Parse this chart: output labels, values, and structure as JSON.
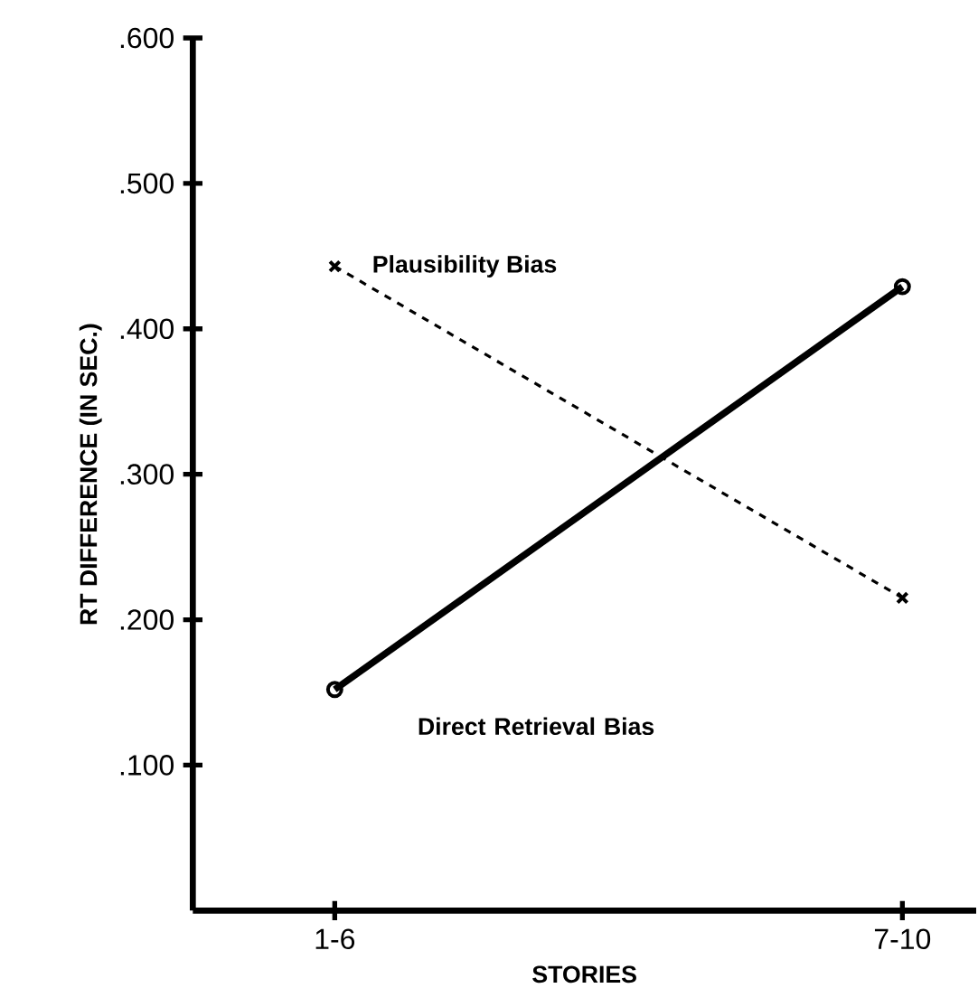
{
  "chart_data": {
    "type": "line",
    "xlabel": "STORIES",
    "ylabel": "RT DIFFERENCE (IN SEC.)",
    "categories": [
      "1-6",
      "7-10"
    ],
    "series": [
      {
        "name": "Direct Retrieval Bias",
        "color": "#000000",
        "values": [
          0.152,
          0.429
        ],
        "marker": "circle",
        "line_style": "solid"
      },
      {
        "name": "Plausibility Bias",
        "color": "#000000",
        "values": [
          0.443,
          0.215
        ],
        "marker": "cross",
        "line_style": "dashed"
      }
    ],
    "ylim": [
      0,
      0.6
    ],
    "yticks": [
      {
        "value": 0.1,
        "label": ".100"
      },
      {
        "value": 0.2,
        "label": ".200"
      },
      {
        "value": 0.3,
        "label": ".300"
      },
      {
        "value": 0.4,
        "label": ".400"
      },
      {
        "value": 0.5,
        "label": ".500"
      },
      {
        "value": 0.6,
        "label": ".600"
      }
    ],
    "grid": false,
    "legend": false
  }
}
